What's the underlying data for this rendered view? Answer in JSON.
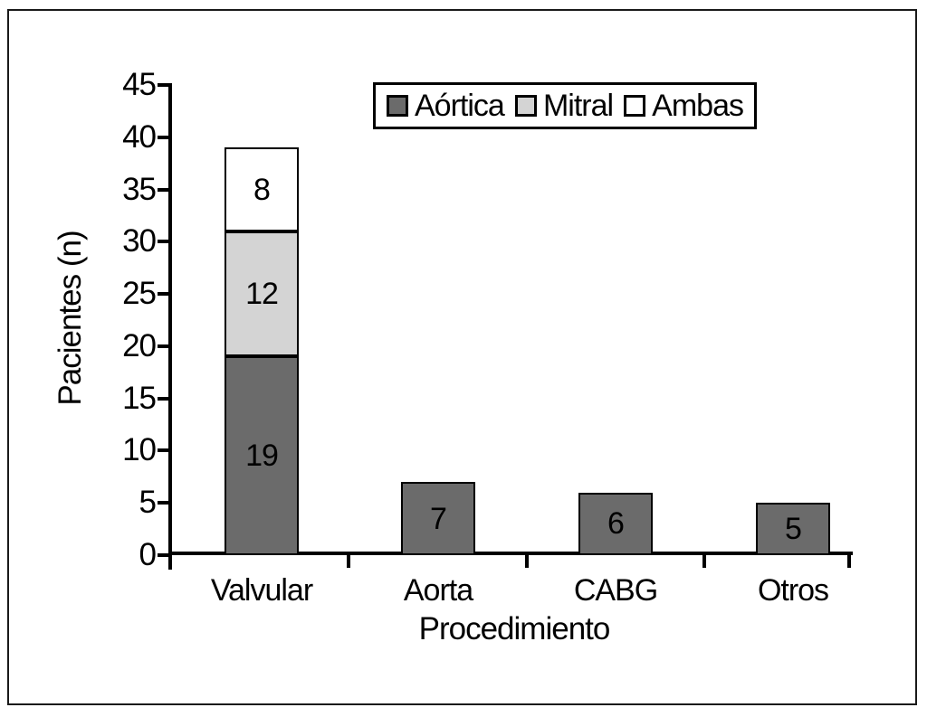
{
  "colors": {
    "bar_dark": "#6b6b6b",
    "bar_light": "#d4d4d4",
    "bar_white": "#ffffff",
    "line": "#000000",
    "background": "#ffffff"
  },
  "chart_data": {
    "type": "bar",
    "stacked": true,
    "title": "",
    "xlabel": "Procedimiento",
    "ylabel": "Pacientes (n)",
    "ylim": [
      0,
      45
    ],
    "ytick_step": 5,
    "yticks": [
      0,
      5,
      10,
      15,
      20,
      25,
      30,
      35,
      40,
      45
    ],
    "grid": false,
    "legend_position": "top-center",
    "categories": [
      "Valvular",
      "Aorta",
      "CABG",
      "Otros"
    ],
    "legend": [
      {
        "label": "Aórtica",
        "fill": "bar_dark"
      },
      {
        "label": "Mitral",
        "fill": "bar_light"
      },
      {
        "label": "Ambas",
        "fill": "bar_white"
      }
    ],
    "bars": [
      {
        "category": "Valvular",
        "total": 39,
        "segments": [
          {
            "series": "Aórtica",
            "value": 19,
            "fill": "bar_dark"
          },
          {
            "series": "Mitral",
            "value": 12,
            "fill": "bar_light"
          },
          {
            "series": "Ambas",
            "value": 8,
            "fill": "bar_white"
          }
        ]
      },
      {
        "category": "Aorta",
        "total": 7,
        "segments": [
          {
            "series": "",
            "value": 7,
            "fill": "bar_dark"
          }
        ]
      },
      {
        "category": "CABG",
        "total": 6,
        "segments": [
          {
            "series": "",
            "value": 6,
            "fill": "bar_dark"
          }
        ]
      },
      {
        "category": "Otros",
        "total": 5,
        "segments": [
          {
            "series": "",
            "value": 5,
            "fill": "bar_dark"
          }
        ]
      }
    ]
  }
}
